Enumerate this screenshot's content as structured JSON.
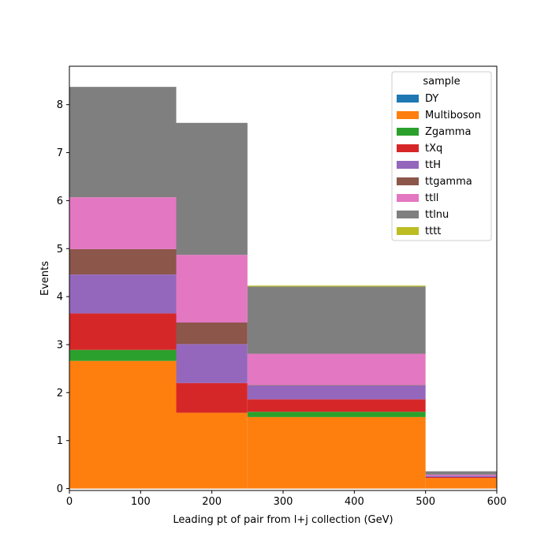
{
  "chart_data": {
    "type": "bar",
    "stacked": true,
    "histogram": true,
    "bin_edges": [
      0,
      150,
      250,
      500,
      600
    ],
    "xlabel": "Leading pt of pair from l+j collection (GeV)",
    "ylabel": "Events",
    "xlim": [
      0,
      600
    ],
    "ylim": [
      -0.04,
      8.8
    ],
    "xticks": [
      0,
      100,
      200,
      300,
      400,
      500,
      600
    ],
    "yticks": [
      0,
      1,
      2,
      3,
      4,
      5,
      6,
      7,
      8
    ],
    "grid": false,
    "legend_title": "sample",
    "legend_position": "top-right",
    "series": [
      {
        "name": "DY",
        "color": "#1f77b4",
        "values": [
          0.0,
          0.0,
          0.0,
          0.0
        ]
      },
      {
        "name": "Multiboson",
        "color": "#ff7f0e",
        "values": [
          2.66,
          1.58,
          1.49,
          0.22
        ]
      },
      {
        "name": "Zgamma",
        "color": "#2ca02c",
        "values": [
          0.23,
          0.0,
          0.11,
          0.0
        ]
      },
      {
        "name": "tXq",
        "color": "#d62728",
        "values": [
          0.76,
          0.62,
          0.26,
          0.02
        ]
      },
      {
        "name": "ttH",
        "color": "#9467bd",
        "values": [
          0.81,
          0.81,
          0.29,
          0.03
        ]
      },
      {
        "name": "ttgamma",
        "color": "#8c564b",
        "values": [
          0.53,
          0.45,
          0.01,
          0.0
        ]
      },
      {
        "name": "ttll",
        "color": "#e377c2",
        "values": [
          1.08,
          1.41,
          0.65,
          0.02
        ]
      },
      {
        "name": "ttlnu",
        "color": "#7f7f7f",
        "values": [
          2.3,
          2.75,
          1.4,
          0.07
        ]
      },
      {
        "name": "tttt",
        "color": "#bcbd22",
        "values": [
          0.0,
          0.0,
          0.02,
          0.0
        ]
      }
    ]
  }
}
